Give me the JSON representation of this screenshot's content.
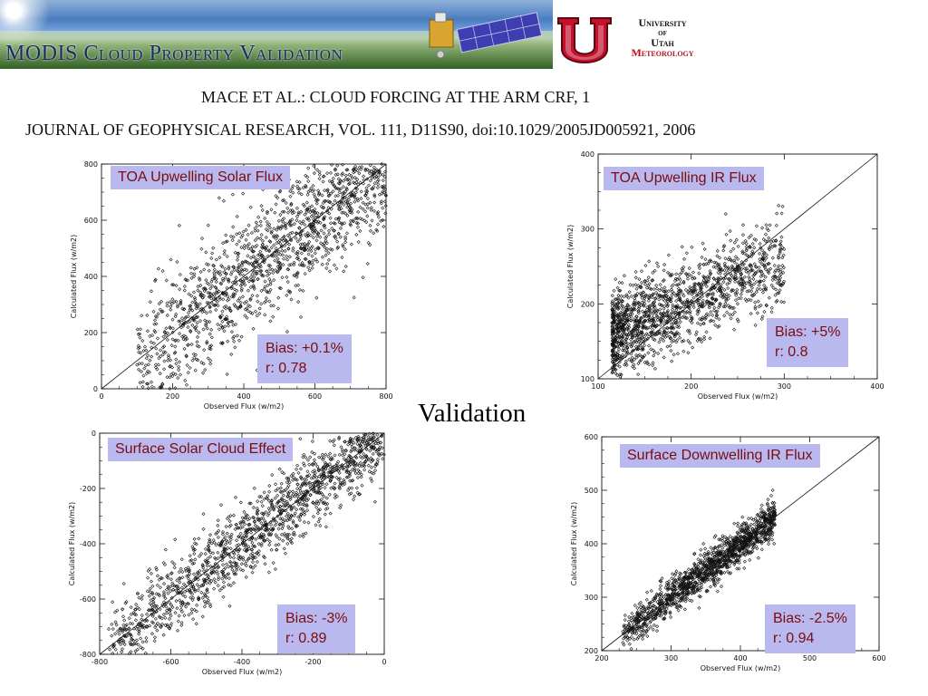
{
  "banner": {
    "title": "MODIS Cloud Property Validation"
  },
  "logo": {
    "line1": "University",
    "line2": "of",
    "line3": "Utah",
    "line4": "Meteorology"
  },
  "citation": {
    "line1": "MACE ET AL.: CLOUD FORCING AT THE ARM CRF, 1",
    "line2": "JOURNAL OF GEOPHYSICAL RESEARCH, VOL. 111, D11S90, doi:10.1029/2005JD005921, 2006"
  },
  "center_label": "Validation",
  "colors": {
    "label_bg": "#b9b9f0",
    "label_text": "#7a0d0d",
    "banner_title": "#1d2a5e",
    "utah_red": "#c8102e"
  },
  "chart_data": [
    {
      "type": "scatter",
      "title": "TOA Upwelling Solar Flux",
      "xlabel": "Observed Flux (w/m2)",
      "ylabel": "Calculated Flux (w/m2)",
      "xlim": [
        0,
        800
      ],
      "ylim": [
        0,
        800
      ],
      "xticks": [
        "0",
        "200",
        "400",
        "600",
        "800"
      ],
      "yticks": [
        "0",
        "200",
        "400",
        "600",
        "800"
      ],
      "one_to_one_line": true,
      "stats": [
        "Bias: +0.1%",
        "r: 0.78"
      ],
      "cloud": {
        "x_start": 100,
        "x_end": 800,
        "slope": 1.0,
        "intercept": 0,
        "spread": 110,
        "n": 1500
      }
    },
    {
      "type": "scatter",
      "title": "TOA Upwelling IR Flux",
      "xlabel": "Observed Flux (w/m2)",
      "ylabel": "Calculated Flux (w/m2)",
      "xlim": [
        100,
        400
      ],
      "ylim": [
        100,
        400
      ],
      "xticks": [
        "100",
        "200",
        "300",
        "400"
      ],
      "yticks": [
        "100",
        "200",
        "300",
        "400"
      ],
      "one_to_one_line": true,
      "stats": [
        "Bias: +5%",
        "r: 0.8"
      ],
      "cloud": {
        "x_start": 115,
        "x_end": 300,
        "slope": 0.55,
        "intercept": 95,
        "spread": 28,
        "n": 1500
      }
    },
    {
      "type": "scatter",
      "title": "Surface Solar Cloud Effect",
      "xlabel": "Observed Flux (w/m2)",
      "ylabel": "Calculated Flux (w/m2)",
      "xlim": [
        -800,
        0
      ],
      "ylim": [
        -800,
        0
      ],
      "xticks": [
        "-800",
        "-600",
        "-400",
        "-200",
        "0"
      ],
      "yticks": [
        "-800",
        "-600",
        "-400",
        "-200",
        "0"
      ],
      "one_to_one_line": true,
      "stats": [
        "Bias: -3%",
        "r: 0.89"
      ],
      "cloud": {
        "x_start": -780,
        "x_end": 0,
        "slope": 1.0,
        "intercept": 0,
        "spread": 70,
        "n": 1500
      }
    },
    {
      "type": "scatter",
      "title": "Surface Downwelling IR Flux",
      "xlabel": "Observed Flux (w/m2)",
      "ylabel": "Calculated Flux (w/m2)",
      "xlim": [
        200,
        600
      ],
      "ylim": [
        200,
        600
      ],
      "xticks": [
        "200",
        "300",
        "400",
        "500",
        "600"
      ],
      "yticks": [
        "200",
        "300",
        "400",
        "500",
        "600"
      ],
      "one_to_one_line": true,
      "stats": [
        "Bias: -2.5%",
        "r: 0.94"
      ],
      "cloud": {
        "x_start": 230,
        "x_end": 450,
        "slope": 1.0,
        "intercept": 0,
        "spread": 18,
        "n": 1400
      }
    }
  ]
}
